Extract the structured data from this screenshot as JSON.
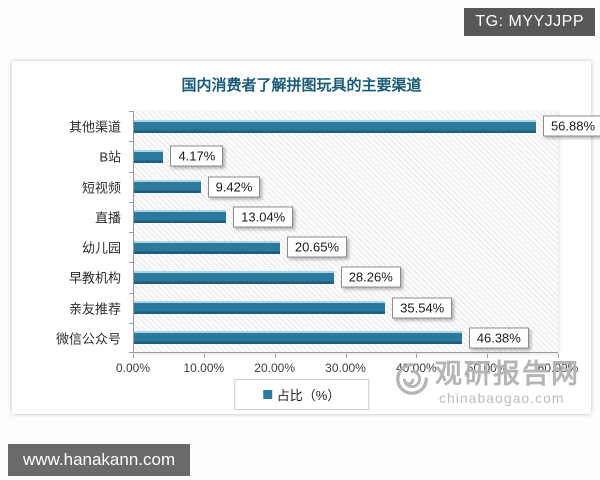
{
  "overlays": {
    "tg_badge": "TG: MYYJJPP",
    "site_badge": "www.hanakann.com"
  },
  "chart": {
    "legend_label": "占比（%）",
    "watermark_name": "观研报告网",
    "watermark_domain": "chinabaogao.com"
  },
  "colors": {
    "bar": "#2b7a9d",
    "title": "#1b5b78",
    "badge_bg": "#58585a"
  },
  "chart_data": {
    "type": "bar",
    "orientation": "horizontal",
    "title": "国内消费者了解拼图玩具的主要渠道",
    "categories": [
      "其他渠道",
      "B站",
      "短视频",
      "直播",
      "幼儿园",
      "早教机构",
      "亲友推荐",
      "微信公众号"
    ],
    "values": [
      56.88,
      4.17,
      9.42,
      13.04,
      20.65,
      28.26,
      35.54,
      46.38
    ],
    "value_labels": [
      "56.88%",
      "4.17%",
      "9.42%",
      "13.04%",
      "20.65%",
      "28.26%",
      "35.54%",
      "46.38%"
    ],
    "series_name": "占比（%）",
    "xlabel": "",
    "ylabel": "",
    "xlim": [
      0,
      60
    ],
    "x_ticks": [
      "0.00%",
      "10.00%",
      "20.00%",
      "30.00%",
      "40.00%",
      "50.00%",
      "60.00%"
    ],
    "grid": false,
    "plot_background": "diagonal-hatch",
    "legend_position": "bottom"
  }
}
